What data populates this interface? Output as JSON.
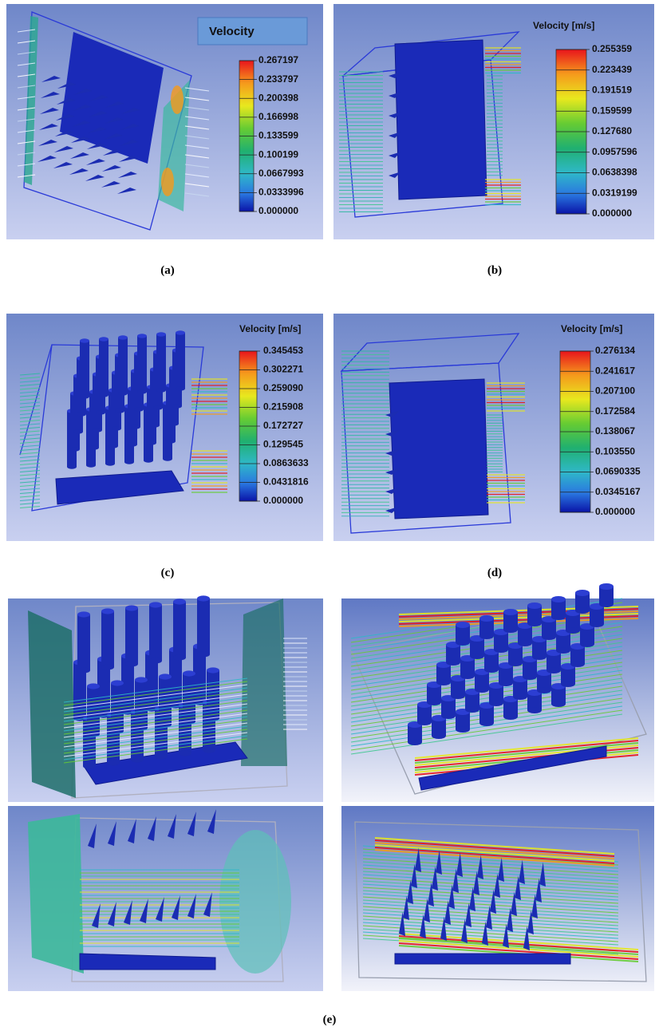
{
  "panels": [
    {
      "label": "(a)",
      "legend_title": "Velocity",
      "legend_ticks": [
        "0.267197",
        "0.233797",
        "0.200398",
        "0.166998",
        "0.133599",
        "0.100199",
        "0.0667993",
        "0.0333996",
        "0.000000"
      ]
    },
    {
      "label": "(b)",
      "legend_title": "Velocity [m/s]",
      "legend_ticks": [
        "0.255359",
        "0.223439",
        "0.191519",
        "0.159599",
        "0.127680",
        "0.0957596",
        "0.0638398",
        "0.0319199",
        "0.000000"
      ]
    },
    {
      "label": "(c)",
      "legend_title": "Velocity [m/s]",
      "legend_ticks": [
        "0.345453",
        "0.302271",
        "0.259090",
        "0.215908",
        "0.172727",
        "0.129545",
        "0.0863633",
        "0.0431816",
        "0.000000"
      ]
    },
    {
      "label": "(d)",
      "legend_title": "Velocity [m/s]",
      "legend_ticks": [
        "0.276134",
        "0.241617",
        "0.207100",
        "0.172584",
        "0.138067",
        "0.103550",
        "0.0690335",
        "0.0345167",
        "0.000000"
      ]
    }
  ],
  "figure_e_label": "(e)"
}
